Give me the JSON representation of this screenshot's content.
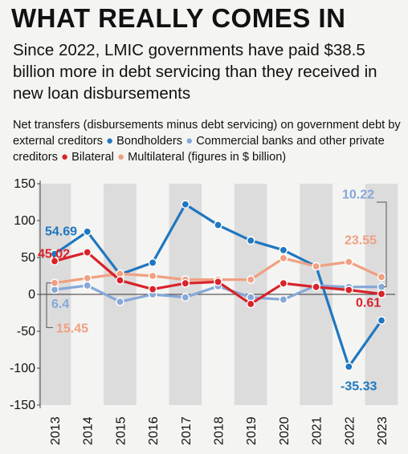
{
  "headline": "WHAT REALLY COMES IN",
  "subtitle": "Since 2022, LMIC governments have paid $38.5 billion more in debt servicing than they received in new loan disbursements",
  "legend": {
    "intro": "Net transfers (disbursements minus debt servicing) on government debt by external creditors",
    "bondholders": "Bondholders",
    "commercial": "Commercial banks and other private creditors",
    "bilateral": "Bilateral",
    "multilateral": "Multilateral (figures in $ billion)"
  },
  "colors": {
    "bondholders": "#1f77c0",
    "commercial": "#85a8d8",
    "bilateral": "#d8232a",
    "multilateral": "#f0a082",
    "band": "#dcdcdc"
  },
  "chart_data": {
    "type": "line",
    "x": [
      "2013",
      "2014",
      "2015",
      "2016",
      "2017",
      "2018",
      "2019",
      "2020",
      "2021",
      "2022",
      "2023"
    ],
    "ylim": [
      -150,
      150
    ],
    "yticks": [
      150,
      100,
      50,
      0,
      -50,
      -100,
      -150
    ],
    "ytick_labels": [
      "150",
      "100",
      "50",
      "0",
      "-50",
      "-100",
      "-150"
    ],
    "series": [
      {
        "key": "bondholders",
        "name": "Bondholders",
        "values": [
          54.69,
          85,
          27,
          43,
          122,
          94,
          73,
          60,
          38,
          -98,
          -35.33
        ]
      },
      {
        "key": "commercial",
        "name": "Commercial banks and other private creditors",
        "values": [
          6.4,
          12,
          -10,
          0,
          -4,
          11,
          -4,
          -7,
          12,
          10,
          10.22
        ]
      },
      {
        "key": "bilateral",
        "name": "Bilateral",
        "values": [
          45.02,
          57,
          19,
          7,
          15,
          17,
          -13,
          15,
          10,
          6,
          0.61
        ]
      },
      {
        "key": "multilateral",
        "name": "Multilateral",
        "values": [
          15.45,
          22,
          28,
          25,
          20,
          20,
          20,
          49,
          38,
          44,
          23.55
        ]
      }
    ],
    "annotations": [
      {
        "text": "54.69",
        "series": "bondholders"
      },
      {
        "text": "45.02",
        "series": "bilateral"
      },
      {
        "text": "6.4",
        "series": "commercial"
      },
      {
        "text": "15.45",
        "series": "multilateral"
      },
      {
        "text": "10.22",
        "series": "commercial"
      },
      {
        "text": "23.55",
        "series": "multilateral"
      },
      {
        "text": "0.61",
        "series": "bilateral"
      },
      {
        "text": "-35.33",
        "series": "bondholders"
      }
    ]
  }
}
